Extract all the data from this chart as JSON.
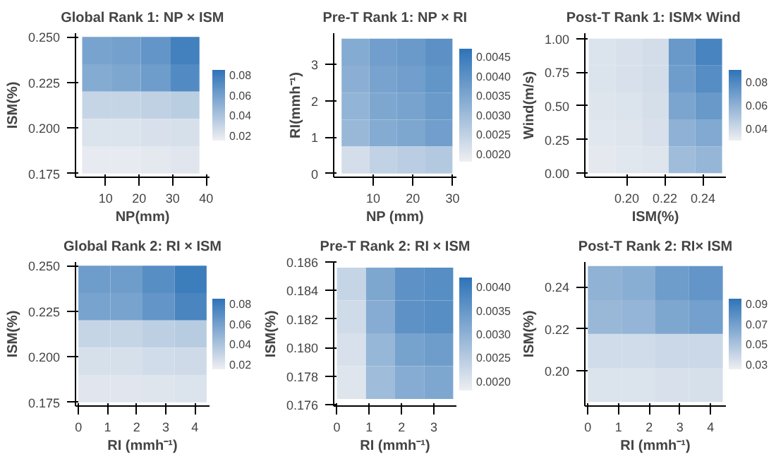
{
  "chart_data": [
    {
      "type": "heatmap",
      "title": "Global Rank 1: NP × ISM",
      "xlabel": "NP(mm)",
      "ylabel": "ISM(%)",
      "x": [
        7.375,
        16.125,
        24.875,
        33.625
      ],
      "y": [
        0.2425,
        0.2275,
        0.2125,
        0.1975,
        0.1825
      ],
      "cells": [
        [
          0.058,
          0.06,
          0.066,
          0.078
        ],
        [
          0.054,
          0.056,
          0.062,
          0.072
        ],
        [
          0.03,
          0.03,
          0.032,
          0.034
        ],
        [
          0.022,
          0.022,
          0.023,
          0.024
        ],
        [
          0.018,
          0.018,
          0.019,
          0.02
        ]
      ],
      "xlim": [
        1,
        41
      ],
      "xticks": [
        10,
        20,
        30,
        40
      ],
      "ylim": [
        0.173,
        0.252
      ],
      "yticks": [
        {
          "value": 0.175,
          "label": "0.175"
        },
        {
          "value": 0.2,
          "label": "0.200"
        },
        {
          "value": 0.225,
          "label": "0.225"
        },
        {
          "value": 0.25,
          "label": "0.250"
        }
      ],
      "clim": [
        0.015,
        0.085
      ],
      "cticks": [
        0.02,
        0.04,
        0.06,
        0.08
      ],
      "colors": [
        "#eeeff2",
        "#2f74b8"
      ]
    },
    {
      "type": "heatmap",
      "title": "Pre-T Rank 1: NP × RI",
      "xlabel": "NP (mm)",
      "ylabel": "RI(mmh⁻¹)",
      "x": [
        5.5,
        12.5,
        19.5,
        26.5
      ],
      "y": [
        3.33,
        2.59,
        1.85,
        1.11,
        0.37
      ],
      "cells": [
        [
          0.0034,
          0.0037,
          0.0038,
          0.004
        ],
        [
          0.0033,
          0.0036,
          0.0037,
          0.0039
        ],
        [
          0.0032,
          0.0035,
          0.0036,
          0.0038
        ],
        [
          0.0031,
          0.0034,
          0.0035,
          0.0037
        ],
        [
          0.0022,
          0.0025,
          0.0026,
          0.0027
        ]
      ],
      "xlim": [
        0,
        31
      ],
      "xticks": [
        10,
        20,
        30
      ],
      "ylim": [
        -0.1,
        3.85
      ],
      "yticks": [
        0,
        1,
        2,
        3
      ],
      "clim": [
        0.0018,
        0.0047
      ],
      "cticks": [
        {
          "value": 0.002,
          "label": "0.0020"
        },
        {
          "value": 0.0025,
          "label": "0.0025"
        },
        {
          "value": 0.003,
          "label": "0.0030"
        },
        {
          "value": 0.0035,
          "label": "0.0035"
        },
        {
          "value": 0.004,
          "label": "0.0040"
        },
        {
          "value": 0.0045,
          "label": "0.0045"
        }
      ],
      "colors": [
        "#eeeff2",
        "#2f74b8"
      ]
    },
    {
      "type": "heatmap",
      "title": "Post-T  Rank 1: ISM× Wind",
      "xlabel": "ISM(%)",
      "ylabel": "Wind(m/s)",
      "x": [
        0.187,
        0.201,
        0.215,
        0.229,
        0.243
      ],
      "y": [
        0.9,
        0.7,
        0.5,
        0.3,
        0.1
      ],
      "cells": [
        [
          0.036,
          0.037,
          0.039,
          0.072,
          0.082
        ],
        [
          0.036,
          0.037,
          0.039,
          0.07,
          0.078
        ],
        [
          0.035,
          0.036,
          0.038,
          0.066,
          0.072
        ],
        [
          0.034,
          0.035,
          0.037,
          0.06,
          0.064
        ],
        [
          0.033,
          0.034,
          0.035,
          0.055,
          0.058
        ]
      ],
      "xlim": [
        0.178,
        0.252
      ],
      "xticks": [
        {
          "value": 0.2,
          "label": "0.20"
        },
        {
          "value": 0.22,
          "label": "0.22"
        },
        {
          "value": 0.24,
          "label": "0.24"
        }
      ],
      "ylim": [
        -0.03,
        1.04
      ],
      "yticks": [
        {
          "value": 0,
          "label": "0.00"
        },
        {
          "value": 0.25,
          "label": "0.25"
        },
        {
          "value": 0.5,
          "label": "0.50"
        },
        {
          "value": 0.75,
          "label": "0.75"
        },
        {
          "value": 1,
          "label": "1.00"
        }
      ],
      "clim": [
        0.03,
        0.09
      ],
      "cticks": [
        {
          "value": 0.04,
          "label": "0.04"
        },
        {
          "value": 0.06,
          "label": "0.06"
        },
        {
          "value": 0.08,
          "label": "0.08"
        }
      ],
      "colors": [
        "#eeeff2",
        "#2f74b8"
      ]
    },
    {
      "type": "heatmap",
      "title": "Global Rank 2: RI × ISM",
      "xlabel": "RI (mmh⁻¹)",
      "ylabel": "ISM(%)",
      "x": [
        0.55,
        1.65,
        2.75,
        3.85
      ],
      "y": [
        0.2425,
        0.2275,
        0.2125,
        0.1975,
        0.1825
      ],
      "cells": [
        [
          0.062,
          0.062,
          0.07,
          0.08
        ],
        [
          0.058,
          0.058,
          0.066,
          0.075
        ],
        [
          0.03,
          0.03,
          0.033,
          0.035
        ],
        [
          0.024,
          0.024,
          0.026,
          0.027
        ],
        [
          0.02,
          0.02,
          0.021,
          0.022
        ]
      ],
      "xlim": [
        -0.1,
        4.5
      ],
      "xticks": [
        0,
        1,
        2,
        3,
        4
      ],
      "ylim": [
        0.173,
        0.252
      ],
      "yticks": [
        {
          "value": 0.175,
          "label": "0.175"
        },
        {
          "value": 0.2,
          "label": "0.200"
        },
        {
          "value": 0.225,
          "label": "0.225"
        },
        {
          "value": 0.25,
          "label": "0.250"
        }
      ],
      "clim": [
        0.015,
        0.085
      ],
      "cticks": [
        0.02,
        0.04,
        0.06,
        0.08
      ],
      "colors": [
        "#eeeff2",
        "#2f74b8"
      ]
    },
    {
      "type": "heatmap",
      "title": "Pre-T Rank 2: RI × ISM",
      "xlabel": "RI (mmh⁻¹)",
      "ylabel": "ISM(%)",
      "x": [
        0.45,
        1.35,
        2.25,
        3.15
      ],
      "y": [
        0.18445,
        0.18215,
        0.17985,
        0.17755
      ],
      "cells": [
        [
          0.0023,
          0.0032,
          0.0036,
          0.0037
        ],
        [
          0.0022,
          0.0031,
          0.0036,
          0.0037
        ],
        [
          0.0021,
          0.0029,
          0.0033,
          0.0034
        ],
        [
          0.002,
          0.0028,
          0.0031,
          0.0032
        ]
      ],
      "xlim": [
        -0.1,
        3.7
      ],
      "xticks": [
        0,
        1,
        2,
        3
      ],
      "ylim": [
        0.1759,
        0.186
      ],
      "yticks": [
        0.176,
        0.178,
        {
          "value": 0.18,
          "label": "0.180"
        },
        0.182,
        0.184,
        0.186
      ],
      "clim": [
        0.0018,
        0.0042
      ],
      "cticks": [
        {
          "value": 0.002,
          "label": "0.0020"
        },
        {
          "value": 0.0025,
          "label": "0.0025"
        },
        {
          "value": 0.003,
          "label": "0.0030"
        },
        {
          "value": 0.0035,
          "label": "0.0035"
        },
        {
          "value": 0.004,
          "label": "0.0040"
        }
      ],
      "colors": [
        "#eeeff2",
        "#2f74b8"
      ]
    },
    {
      "type": "heatmap",
      "title": "Post-T Rank 2: RI× ISM",
      "xlabel": "RI (mmh⁻¹)",
      "ylabel": "ISM(%)",
      "x": [
        0.55,
        1.65,
        2.75,
        3.85
      ],
      "y": [
        0.2419,
        0.2256,
        0.2094,
        0.1931
      ],
      "cells": [
        [
          0.06,
          0.062,
          0.072,
          0.076
        ],
        [
          0.056,
          0.058,
          0.066,
          0.07
        ],
        [
          0.036,
          0.036,
          0.038,
          0.038
        ],
        [
          0.032,
          0.032,
          0.033,
          0.034
        ]
      ],
      "xlim": [
        -0.1,
        4.5
      ],
      "xticks": [
        0,
        1,
        2,
        3,
        4
      ],
      "ylim": [
        0.183,
        0.252
      ],
      "yticks": [
        {
          "value": 0.2,
          "label": "0.20"
        },
        {
          "value": 0.22,
          "label": "0.22"
        },
        {
          "value": 0.24,
          "label": "0.24"
        }
      ],
      "clim": [
        0.025,
        0.095
      ],
      "cticks": [
        0.03,
        0.05,
        0.07,
        0.09
      ],
      "colors": [
        "#eeeff2",
        "#2f74b8"
      ]
    }
  ]
}
